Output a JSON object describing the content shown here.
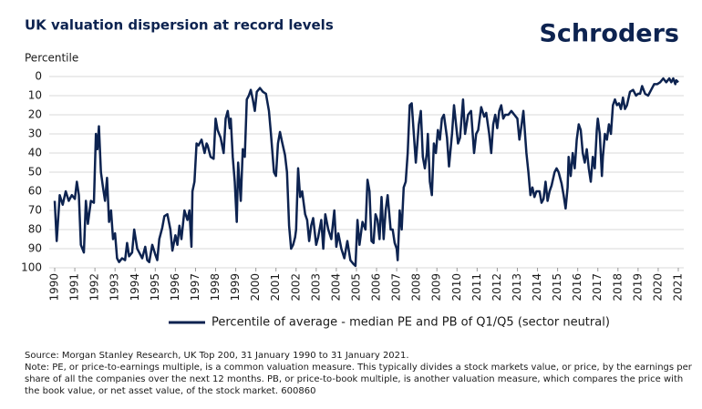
{
  "brand": "Schroders",
  "source": [
    "Source: Morgan Stanley Research, UK Top 200, 31 January 1990 to 31 January 2021.",
    "Note: PE, or price-to-earnings multiple, is a common valuation measure. This typically divides a stock markets value, or price, by the earnings per",
    "share of all the companies over the next 12 months. PB, or price-to-book multiple, is another valuation measure, which compares the price with",
    "the book value, or net asset value, of the stock market. 600860"
  ],
  "chart_data": {
    "type": "line",
    "title": "UK valuation dispersion at record levels",
    "y_label": "Percentile",
    "y_inverted": true,
    "grid": true,
    "legend": "bottom",
    "xlim": [
      1990,
      2021
    ],
    "xticks": [
      1990,
      1991,
      1992,
      1993,
      1994,
      1995,
      1996,
      1997,
      1998,
      1999,
      2000,
      2001,
      2002,
      2003,
      2004,
      2005,
      2006,
      2007,
      2008,
      2009,
      2010,
      2011,
      2012,
      2013,
      2014,
      2015,
      2016,
      2017,
      2018,
      2019,
      2020,
      2021
    ],
    "ylim": [
      0,
      100
    ],
    "yticks": [
      0,
      10,
      20,
      30,
      40,
      50,
      60,
      70,
      80,
      90,
      100
    ],
    "x": [
      1990.0,
      1990.1,
      1990.25,
      1990.4,
      1990.55,
      1990.7,
      1990.85,
      1991.0,
      1991.1,
      1991.2,
      1991.3,
      1991.45,
      1991.55,
      1991.65,
      1991.8,
      1991.95,
      1992.05,
      1992.12,
      1992.2,
      1992.3,
      1992.4,
      1992.5,
      1992.6,
      1992.7,
      1992.8,
      1992.9,
      1993.0,
      1993.1,
      1993.2,
      1993.35,
      1993.5,
      1993.6,
      1993.7,
      1993.85,
      1993.95,
      1994.1,
      1994.2,
      1994.35,
      1994.5,
      1994.6,
      1994.7,
      1994.85,
      1995.0,
      1995.1,
      1995.2,
      1995.35,
      1995.45,
      1995.6,
      1995.75,
      1995.85,
      1996.0,
      1996.1,
      1996.2,
      1996.3,
      1996.45,
      1996.6,
      1996.7,
      1996.8,
      1996.85,
      1996.95,
      1997.05,
      1997.15,
      1997.3,
      1997.45,
      1997.55,
      1997.6,
      1997.75,
      1997.9,
      1998.0,
      1998.1,
      1998.25,
      1998.4,
      1998.5,
      1998.6,
      1998.7,
      1998.75,
      1998.85,
      1998.95,
      1999.05,
      1999.12,
      1999.25,
      1999.35,
      1999.45,
      1999.55,
      1999.65,
      1999.75,
      1999.85,
      1999.95,
      2000.05,
      2000.2,
      2000.35,
      2000.5,
      2000.65,
      2000.75,
      2000.9,
      2001.0,
      2001.1,
      2001.2,
      2001.3,
      2001.45,
      2001.55,
      2001.65,
      2001.75,
      2001.85,
      2001.95,
      2002.0,
      2002.1,
      2002.2,
      2002.3,
      2002.45,
      2002.55,
      2002.65,
      2002.75,
      2002.85,
      2003.0,
      2003.1,
      2003.25,
      2003.35,
      2003.45,
      2003.6,
      2003.75,
      2003.9,
      2004.0,
      2004.1,
      2004.25,
      2004.4,
      2004.55,
      2004.7,
      2004.85,
      2004.95,
      2005.05,
      2005.15,
      2005.3,
      2005.45,
      2005.55,
      2005.65,
      2005.75,
      2005.85,
      2005.95,
      2006.05,
      2006.15,
      2006.25,
      2006.35,
      2006.45,
      2006.55,
      2006.7,
      2006.8,
      2006.9,
      2007.0,
      2007.05,
      2007.15,
      2007.25,
      2007.35,
      2007.45,
      2007.55,
      2007.65,
      2007.75,
      2007.85,
      2007.95,
      2008.1,
      2008.2,
      2008.3,
      2008.4,
      2008.5,
      2008.55,
      2008.65,
      2008.75,
      2008.85,
      2008.95,
      2009.05,
      2009.15,
      2009.25,
      2009.35,
      2009.5,
      2009.6,
      2009.75,
      2009.85,
      2009.95,
      2010.05,
      2010.15,
      2010.3,
      2010.4,
      2010.55,
      2010.7,
      2010.85,
      2010.95,
      2011.05,
      2011.2,
      2011.35,
      2011.45,
      2011.6,
      2011.7,
      2011.8,
      2011.9,
      2012.0,
      2012.1,
      2012.2,
      2012.3,
      2012.4,
      2012.55,
      2012.7,
      2012.85,
      2013.0,
      2013.1,
      2013.2,
      2013.3,
      2013.45,
      2013.55,
      2013.65,
      2013.75,
      2013.85,
      2013.95,
      2014.1,
      2014.2,
      2014.3,
      2014.4,
      2014.5,
      2014.6,
      2014.7,
      2014.85,
      2014.95,
      2015.05,
      2015.2,
      2015.3,
      2015.4,
      2015.5,
      2015.55,
      2015.65,
      2015.75,
      2015.85,
      2015.95,
      2016.05,
      2016.15,
      2016.25,
      2016.35,
      2016.45,
      2016.55,
      2016.65,
      2016.75,
      2016.85,
      2016.95,
      2017.0,
      2017.1,
      2017.2,
      2017.25,
      2017.35,
      2017.45,
      2017.55,
      2017.65,
      2017.75,
      2017.85,
      2017.95,
      2018.05,
      2018.15,
      2018.25,
      2018.35,
      2018.45,
      2018.6,
      2018.75,
      2018.9,
      2019.0,
      2019.1,
      2019.2,
      2019.35,
      2019.5,
      2019.65,
      2019.8,
      2019.95,
      2020.1,
      2020.25,
      2020.4,
      2020.55,
      2020.65,
      2020.75,
      2020.85,
      2020.9,
      2021.0
    ],
    "series": [
      {
        "name": "Percentile of average - median PE and PB of Q1/Q5 (sector neutral)",
        "color": "#0d2350",
        "values": [
          65,
          86,
          62,
          67,
          60,
          65,
          62,
          64,
          55,
          62,
          88,
          92,
          65,
          77,
          65,
          66,
          30,
          38,
          26,
          50,
          58,
          65,
          53,
          76,
          70,
          85,
          82,
          95,
          97,
          95,
          96,
          87,
          94,
          92,
          80,
          90,
          92,
          95,
          89,
          96,
          97,
          88,
          93,
          96,
          85,
          79,
          73,
          72,
          80,
          91,
          83,
          88,
          78,
          85,
          70,
          75,
          70,
          89,
          60,
          55,
          35,
          36,
          33,
          40,
          35,
          36,
          42,
          43,
          22,
          28,
          32,
          40,
          22,
          18,
          27,
          22,
          42,
          55,
          76,
          45,
          65,
          38,
          42,
          12,
          10,
          7,
          12,
          18,
          8,
          6,
          8,
          9,
          18,
          30,
          50,
          52,
          35,
          29,
          34,
          41,
          50,
          78,
          90,
          88,
          84,
          80,
          48,
          63,
          60,
          72,
          75,
          86,
          78,
          74,
          88,
          84,
          75,
          90,
          72,
          80,
          85,
          70,
          89,
          82,
          90,
          95,
          86,
          96,
          98,
          99,
          75,
          88,
          76,
          80,
          54,
          60,
          86,
          87,
          72,
          75,
          85,
          63,
          85,
          70,
          62,
          80,
          80,
          87,
          90,
          96,
          70,
          80,
          58,
          55,
          40,
          15,
          14,
          30,
          45,
          25,
          18,
          42,
          48,
          40,
          30,
          55,
          62,
          35,
          40,
          28,
          33,
          22,
          20,
          32,
          47,
          30,
          15,
          25,
          35,
          32,
          12,
          30,
          20,
          18,
          40,
          30,
          28,
          16,
          21,
          19,
          30,
          40,
          25,
          20,
          27,
          18,
          15,
          22,
          20,
          20,
          18,
          20,
          22,
          33,
          26,
          18,
          40,
          50,
          62,
          58,
          63,
          60,
          60,
          66,
          64,
          55,
          65,
          60,
          57,
          50,
          48,
          50,
          56,
          62,
          69,
          58,
          42,
          52,
          40,
          48,
          33,
          25,
          28,
          40,
          45,
          38,
          48,
          55,
          42,
          48,
          28,
          22,
          30,
          52,
          42,
          30,
          33,
          25,
          30,
          15,
          12,
          15,
          14,
          17,
          11,
          17,
          15,
          8,
          7,
          10,
          9,
          9,
          5,
          9,
          10,
          7,
          4,
          4,
          3,
          1,
          3,
          1,
          3,
          1,
          4,
          2,
          3
        ]
      }
    ]
  }
}
